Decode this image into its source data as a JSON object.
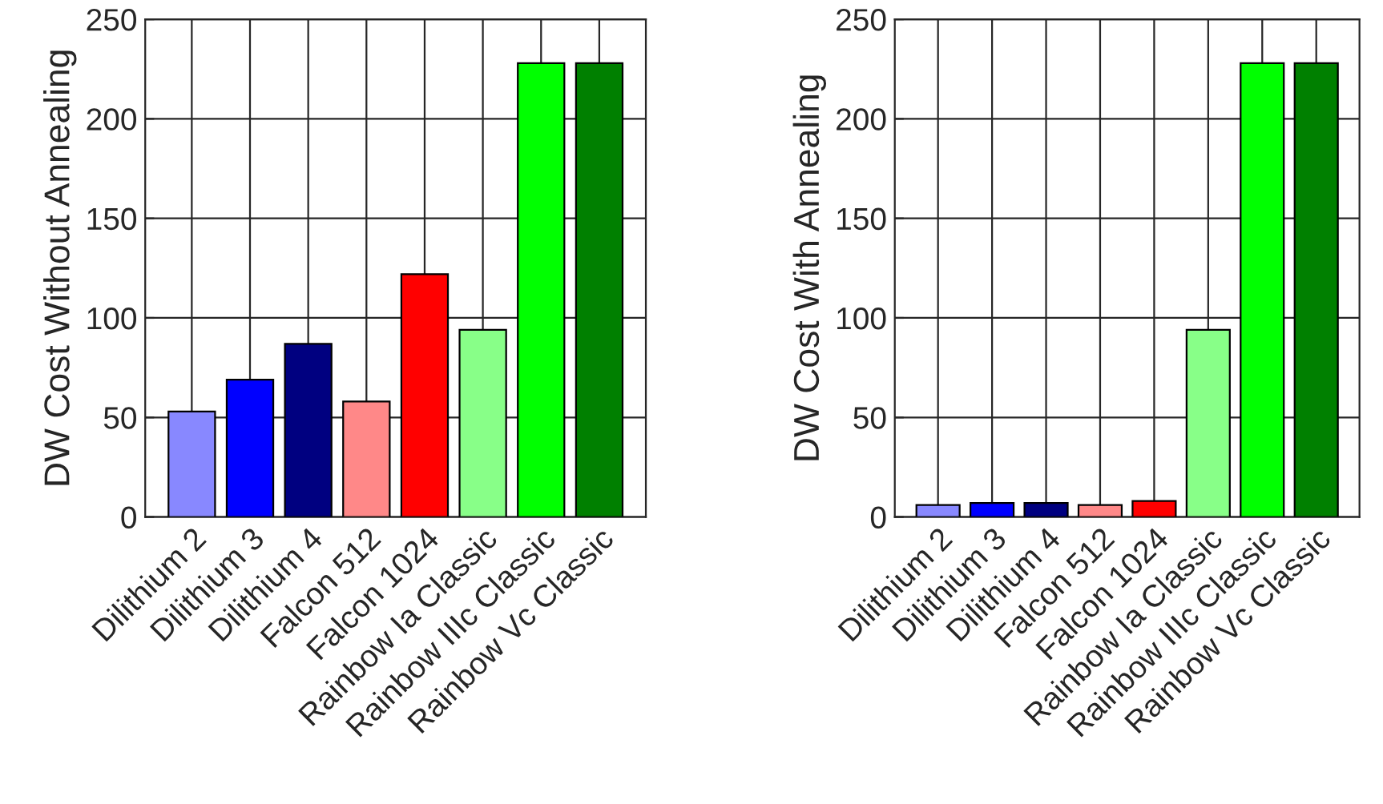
{
  "chart_data": [
    {
      "type": "bar",
      "ylabel": "DW Cost Without Annealing",
      "categories": [
        "Dilithium 2",
        "Dilithium 3",
        "Dilithium 4",
        "Falcon 512",
        "Falcon 1024",
        "Rainbow Ia Classic",
        "Rainbow IIIc Classic",
        "Rainbow Vc Classic"
      ],
      "values": [
        53,
        69,
        87,
        58,
        122,
        94,
        228,
        228
      ],
      "colors": [
        "#8888ff",
        "#0000ff",
        "#000080",
        "#ff8888",
        "#ff0000",
        "#88ff88",
        "#00ff00",
        "#008000"
      ],
      "ylim": [
        0,
        250
      ],
      "yticks": [
        0,
        50,
        100,
        150,
        200,
        250
      ],
      "grid": true
    },
    {
      "type": "bar",
      "ylabel": "DW Cost With Annealing",
      "categories": [
        "Dilithium 2",
        "Dilithium 3",
        "Dilithium 4",
        "Falcon 512",
        "Falcon 1024",
        "Rainbow Ia Classic",
        "Rainbow IIIc Classic",
        "Rainbow Vc Classic"
      ],
      "values": [
        6,
        7,
        7,
        6,
        8,
        94,
        228,
        228
      ],
      "colors": [
        "#8888ff",
        "#0000ff",
        "#000080",
        "#ff8888",
        "#ff0000",
        "#88ff88",
        "#00ff00",
        "#008000"
      ],
      "ylim": [
        0,
        250
      ],
      "yticks": [
        0,
        50,
        100,
        150,
        200,
        250
      ],
      "grid": true
    }
  ]
}
